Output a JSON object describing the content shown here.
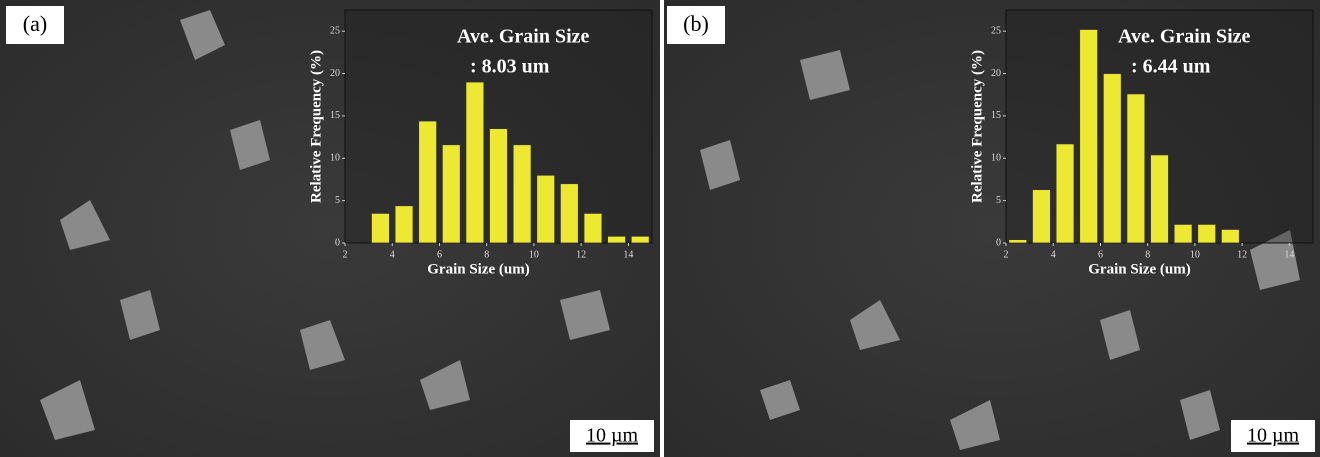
{
  "panels": [
    {
      "label": "(a)",
      "scale_bar": "10 µm"
    },
    {
      "label": "(b)",
      "scale_bar": "10 µm"
    }
  ],
  "chart_data": [
    {
      "type": "histogram",
      "annotation": [
        "Ave. Grain Size",
        ": 8.03 um"
      ],
      "xlabel": "Grain Size (um)",
      "ylabel": "Relative Frequency (%)",
      "bins": [
        3,
        4,
        5,
        6,
        7,
        8,
        9,
        10,
        11,
        12,
        13,
        14,
        15
      ],
      "values": [
        3.5,
        4.4,
        14.4,
        11.6,
        19,
        13.5,
        11.6,
        8,
        7,
        3.5,
        0.8,
        0.8
      ],
      "color": "#ede832",
      "xlim": [
        2,
        15
      ],
      "xticks": [
        2,
        4,
        6,
        8,
        10,
        12,
        14
      ],
      "ylim": [
        0,
        27.5
      ],
      "yticks": [
        0,
        5,
        10,
        15,
        20,
        25
      ]
    },
    {
      "type": "histogram",
      "annotation": [
        "Ave. Grain Size",
        ": 6.44 um"
      ],
      "xlabel": "Grain Size (um)",
      "ylabel": "Relative Frequency (%)",
      "bins": [
        2,
        3,
        4,
        5,
        6,
        7,
        8,
        9,
        10,
        11,
        12
      ],
      "values": [
        0.4,
        6.3,
        11.7,
        25.2,
        20,
        17.6,
        10.4,
        2.2,
        2.2,
        1.6
      ],
      "color": "#ede832",
      "xlim": [
        2,
        15
      ],
      "xticks": [
        2,
        4,
        6,
        8,
        10,
        12,
        14
      ],
      "ylim": [
        0,
        27.5
      ],
      "yticks": [
        0,
        5,
        10,
        15,
        20,
        25
      ]
    }
  ]
}
